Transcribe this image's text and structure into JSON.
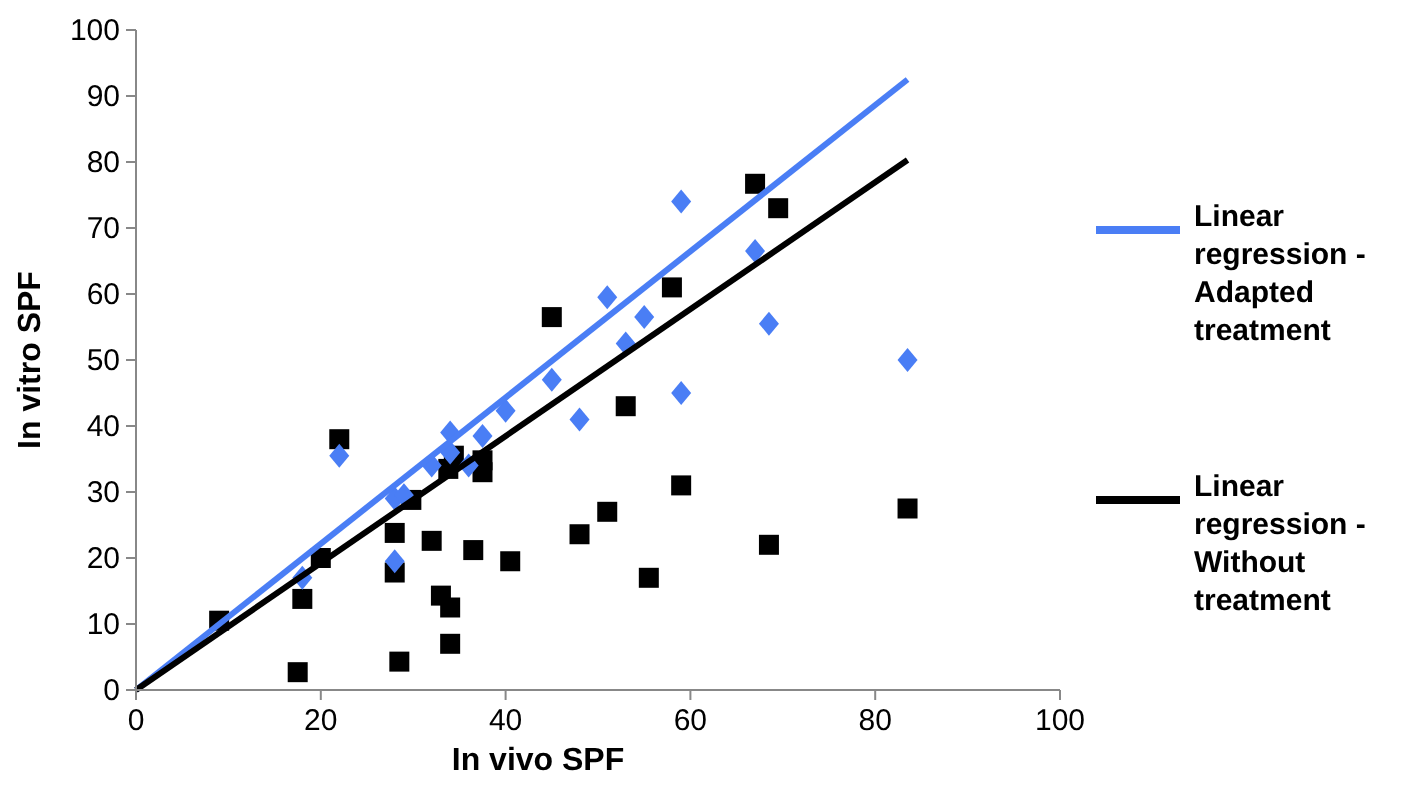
{
  "chart_data": {
    "type": "scatter",
    "xlabel": "In vivo SPF",
    "ylabel": "In vitro SPF",
    "xlim": [
      0,
      100
    ],
    "xticks": [
      0,
      20,
      40,
      60,
      80,
      100
    ],
    "ylim": [
      0,
      100
    ],
    "yticks": [
      0,
      10,
      20,
      30,
      40,
      50,
      60,
      70,
      80,
      90,
      100
    ],
    "grid": false,
    "legend": "right",
    "series": [
      {
        "type": "scatter",
        "marker": "square",
        "color": "#000000",
        "x": [
          9,
          17.5,
          18,
          20,
          22,
          28,
          28,
          28.5,
          29.8,
          32,
          33,
          34,
          34,
          33.8,
          34.4,
          36.5,
          37.5,
          37.5,
          40.5,
          45,
          48,
          51,
          53,
          55.5,
          58,
          59,
          67,
          68.5,
          69.5,
          83.5
        ],
        "values": [
          10.5,
          2.7,
          13.8,
          20,
          38,
          23.8,
          17.8,
          4.3,
          28.8,
          22.6,
          14.3,
          12.5,
          7,
          33.5,
          35.5,
          21.2,
          33,
          34.8,
          19.5,
          56.5,
          23.6,
          27,
          43,
          17,
          61,
          31,
          76.7,
          22,
          73,
          27.5
        ]
      },
      {
        "type": "scatter",
        "marker": "diamond",
        "color": "#4a7ef5",
        "x": [
          18,
          22,
          28,
          28,
          29,
          32,
          34,
          34,
          36,
          37.5,
          40,
          45,
          48,
          51,
          53,
          55,
          59,
          59,
          67,
          68.5,
          83.5
        ],
        "values": [
          17,
          35.5,
          29,
          19.5,
          29.5,
          34,
          39,
          36,
          34,
          38.5,
          42.3,
          47,
          41,
          59.5,
          52.5,
          56.5,
          74,
          45,
          66.5,
          55.5,
          50
        ]
      },
      {
        "type": "line",
        "name": "Linear regression - Adapted treatment",
        "color": "#4a7ef5",
        "x": [
          0,
          83.5
        ],
        "values": [
          0,
          92.5
        ]
      },
      {
        "type": "line",
        "name": "Linear regression - Without treatment",
        "color": "#000000",
        "x": [
          0,
          83.5
        ],
        "values": [
          0,
          80.3
        ]
      }
    ]
  }
}
